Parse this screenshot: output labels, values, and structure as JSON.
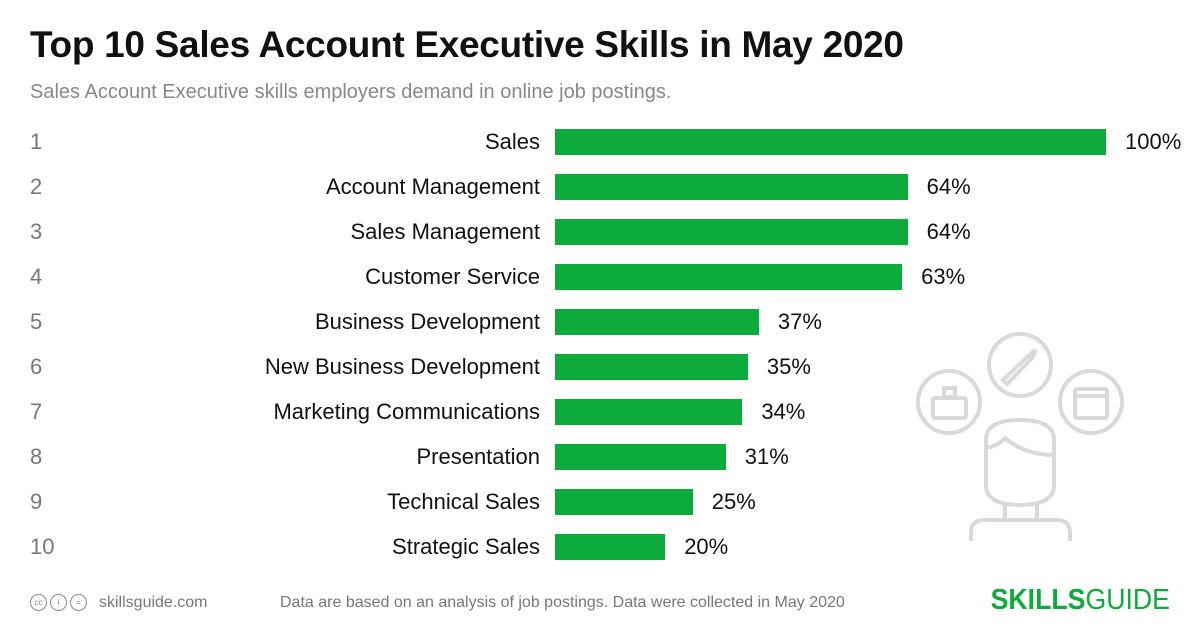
{
  "chart_data": {
    "type": "bar",
    "orientation": "horizontal",
    "title": "Top 10 Sales Account Executive Skills in May 2020",
    "subtitle": "Sales Account Executive skills employers demand in online job postings.",
    "ranks": [
      "1",
      "2",
      "3",
      "4",
      "5",
      "6",
      "7",
      "8",
      "9",
      "10"
    ],
    "categories": [
      "Sales",
      "Account Management",
      "Sales Management",
      "Customer Service",
      "Business Development",
      "New Business Development",
      "Marketing Communications",
      "Presentation",
      "Technical Sales",
      "Strategic Sales"
    ],
    "values": [
      100,
      64,
      64,
      63,
      37,
      35,
      34,
      31,
      25,
      20
    ],
    "value_labels": [
      "100%",
      "64%",
      "64%",
      "63%",
      "37%",
      "35%",
      "34%",
      "31%",
      "25%",
      "20%"
    ],
    "xlim": [
      0,
      100
    ],
    "grid": false,
    "bar_color": "#0dab3c"
  },
  "footer": {
    "license_icons": [
      "cc-icon",
      "attribution-icon",
      "no-derivatives-icon"
    ],
    "site": "skillsguide.com",
    "note": "Data are based on an analysis of job postings. Data were collected in May 2020",
    "logo_bold": "SKILLS",
    "logo_light": "GUIDE"
  },
  "illustration": {
    "icons": [
      "briefcase-icon",
      "pencil-icon",
      "window-icon",
      "person-icon"
    ],
    "color": "#d9d9d9"
  }
}
